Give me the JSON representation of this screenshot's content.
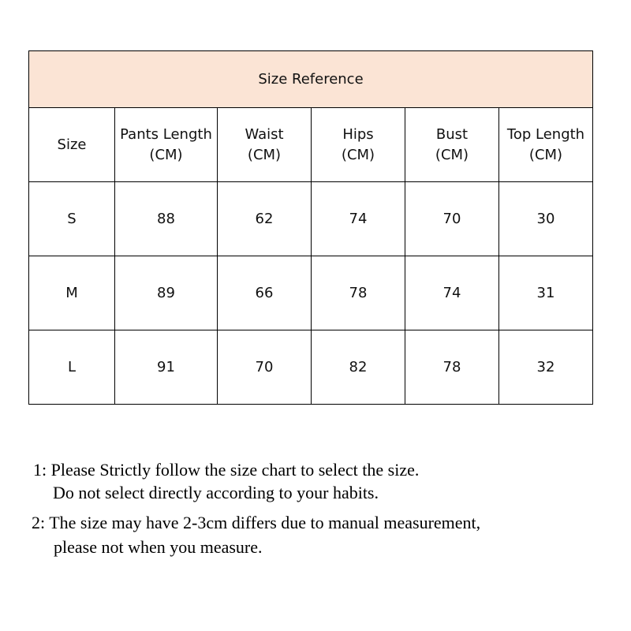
{
  "table": {
    "title": "Size Reference",
    "header_bg": "#fbe4d5",
    "headers": [
      {
        "name": "Size",
        "unit": ""
      },
      {
        "name": "Pants Length",
        "unit": "(CM)"
      },
      {
        "name": "Waist",
        "unit": "(CM)"
      },
      {
        "name": "Hips",
        "unit": "(CM)"
      },
      {
        "name": "Bust",
        "unit": "(CM)"
      },
      {
        "name": "Top Length",
        "unit": "(CM)"
      }
    ],
    "rows": [
      [
        "S",
        "88",
        "62",
        "74",
        "70",
        "30"
      ],
      [
        "M",
        "89",
        "66",
        "78",
        "74",
        "31"
      ],
      [
        "L",
        "91",
        "70",
        "82",
        "78",
        "32"
      ]
    ]
  },
  "notes": [
    {
      "line1": "1: Please Strictly follow the size chart to select the size.",
      "line2": "Do not select directly according to your habits."
    },
    {
      "line1": "2: The size may have 2-3cm differs due to manual measurement,",
      "line2": "please not when you measure."
    }
  ]
}
